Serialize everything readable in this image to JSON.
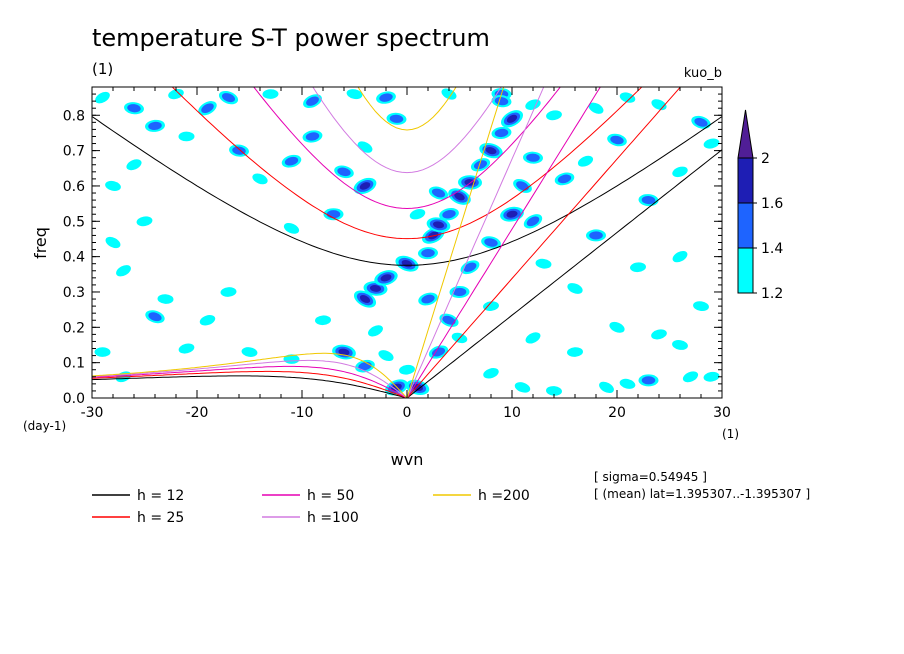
{
  "chart_data": {
    "type": "heatmap",
    "title": "temperature S-T power spectrum",
    "subtitle_left": "(1)",
    "subtitle_right": "kuo_b",
    "xlabel": "wvn",
    "xunit": "(1)",
    "ylabel": "freq",
    "yunit": "(day-1)",
    "xlim": [
      -30,
      30
    ],
    "ylim": [
      0,
      0.88
    ],
    "xticks": [
      -30,
      -20,
      -10,
      0,
      10,
      20,
      30
    ],
    "xtick_labels": [
      "-30",
      "-20",
      "-10",
      "0",
      "10",
      "20",
      "30"
    ],
    "yticks": [
      0,
      0.1,
      0.2,
      0.3,
      0.4,
      0.5,
      0.6,
      0.7,
      0.8
    ],
    "ytick_labels": [
      "0.0",
      "0.1",
      "0.2",
      "0.3",
      "0.4",
      "0.5",
      "0.6",
      "0.7",
      "0.8"
    ],
    "colorbar": {
      "levels": [
        1.2,
        1.4,
        1.6,
        2
      ],
      "labels": [
        "1.2",
        "1.4",
        "1.6",
        "2"
      ],
      "colors": [
        "#00ffff",
        "#1e64ff",
        "#1e1eb4",
        "#501e96"
      ]
    },
    "dispersion_curves": [
      {
        "name": "h = 12",
        "h": 12,
        "color": "#000000"
      },
      {
        "name": "h = 25",
        "h": 25,
        "color": "#ff0000"
      },
      {
        "name": "h = 50",
        "h": 50,
        "color": "#e600b4"
      },
      {
        "name": "h =100",
        "h": 100,
        "color": "#d27be1"
      },
      {
        "name": "h =200",
        "h": 200,
        "color": "#f0c800"
      }
    ],
    "blobs": [
      {
        "wvn": -29,
        "freq": 0.85,
        "level": 1
      },
      {
        "wvn": -26,
        "freq": 0.82,
        "level": 2
      },
      {
        "wvn": -22,
        "freq": 0.86,
        "level": 1
      },
      {
        "wvn": -17,
        "freq": 0.85,
        "level": 2
      },
      {
        "wvn": -13,
        "freq": 0.86,
        "level": 1
      },
      {
        "wvn": -9,
        "freq": 0.84,
        "level": 2
      },
      {
        "wvn": -5,
        "freq": 0.86,
        "level": 1
      },
      {
        "wvn": -2,
        "freq": 0.85,
        "level": 2
      },
      {
        "wvn": 4,
        "freq": 0.86,
        "level": 1
      },
      {
        "wvn": 9,
        "freq": 0.86,
        "level": 2
      },
      {
        "wvn": 12,
        "freq": 0.83,
        "level": 1
      },
      {
        "wvn": 21,
        "freq": 0.85,
        "level": 1
      },
      {
        "wvn": -24,
        "freq": 0.77,
        "level": 2
      },
      {
        "wvn": -19,
        "freq": 0.82,
        "level": 2
      },
      {
        "wvn": -16,
        "freq": 0.7,
        "level": 2
      },
      {
        "wvn": -11,
        "freq": 0.67,
        "level": 2
      },
      {
        "wvn": -14,
        "freq": 0.62,
        "level": 1
      },
      {
        "wvn": -21,
        "freq": 0.74,
        "level": 1
      },
      {
        "wvn": -26,
        "freq": 0.66,
        "level": 1
      },
      {
        "wvn": -28,
        "freq": 0.6,
        "level": 1
      },
      {
        "wvn": -25,
        "freq": 0.5,
        "level": 1
      },
      {
        "wvn": -28,
        "freq": 0.44,
        "level": 1
      },
      {
        "wvn": -23,
        "freq": 0.28,
        "level": 1
      },
      {
        "wvn": -19,
        "freq": 0.22,
        "level": 1
      },
      {
        "wvn": -24,
        "freq": 0.23,
        "level": 2
      },
      {
        "wvn": -17,
        "freq": 0.3,
        "level": 1
      },
      {
        "wvn": -27,
        "freq": 0.36,
        "level": 1
      },
      {
        "wvn": -15,
        "freq": 0.13,
        "level": 1
      },
      {
        "wvn": -21,
        "freq": 0.14,
        "level": 1
      },
      {
        "wvn": -11,
        "freq": 0.48,
        "level": 1
      },
      {
        "wvn": -7,
        "freq": 0.52,
        "level": 2
      },
      {
        "wvn": -4,
        "freq": 0.6,
        "level": 3
      },
      {
        "wvn": -6,
        "freq": 0.64,
        "level": 2
      },
      {
        "wvn": -9,
        "freq": 0.74,
        "level": 2
      },
      {
        "wvn": -4,
        "freq": 0.71,
        "level": 1
      },
      {
        "wvn": -1,
        "freq": 0.79,
        "level": 2
      },
      {
        "wvn": 1,
        "freq": 0.52,
        "level": 1
      },
      {
        "wvn": 3,
        "freq": 0.58,
        "level": 2
      },
      {
        "wvn": -8,
        "freq": 0.22,
        "level": 1
      },
      {
        "wvn": -3,
        "freq": 0.19,
        "level": 1
      },
      {
        "wvn": -6,
        "freq": 0.13,
        "level": 3
      },
      {
        "wvn": -4,
        "freq": 0.09,
        "level": 2
      },
      {
        "wvn": -2,
        "freq": 0.12,
        "level": 1
      },
      {
        "wvn": -11,
        "freq": 0.11,
        "level": 1
      },
      {
        "wvn": -1,
        "freq": 0.03,
        "level": 3
      },
      {
        "wvn": 1,
        "freq": 0.03,
        "level": 3
      },
      {
        "wvn": 0,
        "freq": 0.08,
        "level": 1
      },
      {
        "wvn": -4,
        "freq": 0.28,
        "level": 3
      },
      {
        "wvn": -3,
        "freq": 0.31,
        "level": 3
      },
      {
        "wvn": -2,
        "freq": 0.34,
        "level": 3
      },
      {
        "wvn": 0,
        "freq": 0.38,
        "level": 3
      },
      {
        "wvn": 2,
        "freq": 0.41,
        "level": 2
      },
      {
        "wvn": 2.5,
        "freq": 0.46,
        "level": 3
      },
      {
        "wvn": 3,
        "freq": 0.49,
        "level": 3
      },
      {
        "wvn": 4,
        "freq": 0.52,
        "level": 2
      },
      {
        "wvn": 5,
        "freq": 0.57,
        "level": 3
      },
      {
        "wvn": 6,
        "freq": 0.61,
        "level": 3
      },
      {
        "wvn": 7,
        "freq": 0.66,
        "level": 2
      },
      {
        "wvn": 8,
        "freq": 0.7,
        "level": 3
      },
      {
        "wvn": 9,
        "freq": 0.75,
        "level": 2
      },
      {
        "wvn": 10,
        "freq": 0.79,
        "level": 3
      },
      {
        "wvn": 9,
        "freq": 0.84,
        "level": 2
      },
      {
        "wvn": 2,
        "freq": 0.28,
        "level": 2
      },
      {
        "wvn": 4,
        "freq": 0.22,
        "level": 2
      },
      {
        "wvn": 5,
        "freq": 0.3,
        "level": 2
      },
      {
        "wvn": 6,
        "freq": 0.37,
        "level": 2
      },
      {
        "wvn": 8,
        "freq": 0.44,
        "level": 2
      },
      {
        "wvn": 10,
        "freq": 0.52,
        "level": 3
      },
      {
        "wvn": 11,
        "freq": 0.6,
        "level": 2
      },
      {
        "wvn": 12,
        "freq": 0.68,
        "level": 2
      },
      {
        "wvn": 3,
        "freq": 0.13,
        "level": 2
      },
      {
        "wvn": 5,
        "freq": 0.17,
        "level": 1
      },
      {
        "wvn": 8,
        "freq": 0.26,
        "level": 1
      },
      {
        "wvn": 12,
        "freq": 0.5,
        "level": 2
      },
      {
        "wvn": 13,
        "freq": 0.38,
        "level": 1
      },
      {
        "wvn": 15,
        "freq": 0.62,
        "level": 2
      },
      {
        "wvn": 16,
        "freq": 0.31,
        "level": 1
      },
      {
        "wvn": 18,
        "freq": 0.46,
        "level": 2
      },
      {
        "wvn": 17,
        "freq": 0.67,
        "level": 1
      },
      {
        "wvn": 20,
        "freq": 0.73,
        "level": 2
      },
      {
        "wvn": 14,
        "freq": 0.8,
        "level": 1
      },
      {
        "wvn": 18,
        "freq": 0.82,
        "level": 1
      },
      {
        "wvn": 23,
        "freq": 0.56,
        "level": 2
      },
      {
        "wvn": 26,
        "freq": 0.64,
        "level": 1
      },
      {
        "wvn": 28,
        "freq": 0.78,
        "level": 2
      },
      {
        "wvn": 22,
        "freq": 0.37,
        "level": 1
      },
      {
        "wvn": 26,
        "freq": 0.4,
        "level": 1
      },
      {
        "wvn": 28,
        "freq": 0.26,
        "level": 1
      },
      {
        "wvn": 24,
        "freq": 0.18,
        "level": 1
      },
      {
        "wvn": 20,
        "freq": 0.2,
        "level": 1
      },
      {
        "wvn": 23,
        "freq": 0.05,
        "level": 2
      },
      {
        "wvn": 27,
        "freq": 0.06,
        "level": 1
      },
      {
        "wvn": 21,
        "freq": 0.04,
        "level": 1
      },
      {
        "wvn": 29,
        "freq": 0.06,
        "level": 1
      },
      {
        "wvn": 19,
        "freq": 0.03,
        "level": 1
      },
      {
        "wvn": 14,
        "freq": 0.02,
        "level": 1
      },
      {
        "wvn": 8,
        "freq": 0.07,
        "level": 1
      },
      {
        "wvn": 11,
        "freq": 0.03,
        "level": 1
      },
      {
        "wvn": 16,
        "freq": 0.13,
        "level": 1
      },
      {
        "wvn": 12,
        "freq": 0.17,
        "level": 1
      },
      {
        "wvn": 26,
        "freq": 0.15,
        "level": 1
      },
      {
        "wvn": 29,
        "freq": 0.72,
        "level": 1
      },
      {
        "wvn": 24,
        "freq": 0.83,
        "level": 1
      },
      {
        "wvn": -29,
        "freq": 0.13,
        "level": 1
      },
      {
        "wvn": -27,
        "freq": 0.06,
        "level": 1
      }
    ]
  },
  "info": {
    "sigma": "[ sigma=0.54945 ]",
    "mean": "[ (mean) lat=1.395307..-1.395307 ]"
  }
}
